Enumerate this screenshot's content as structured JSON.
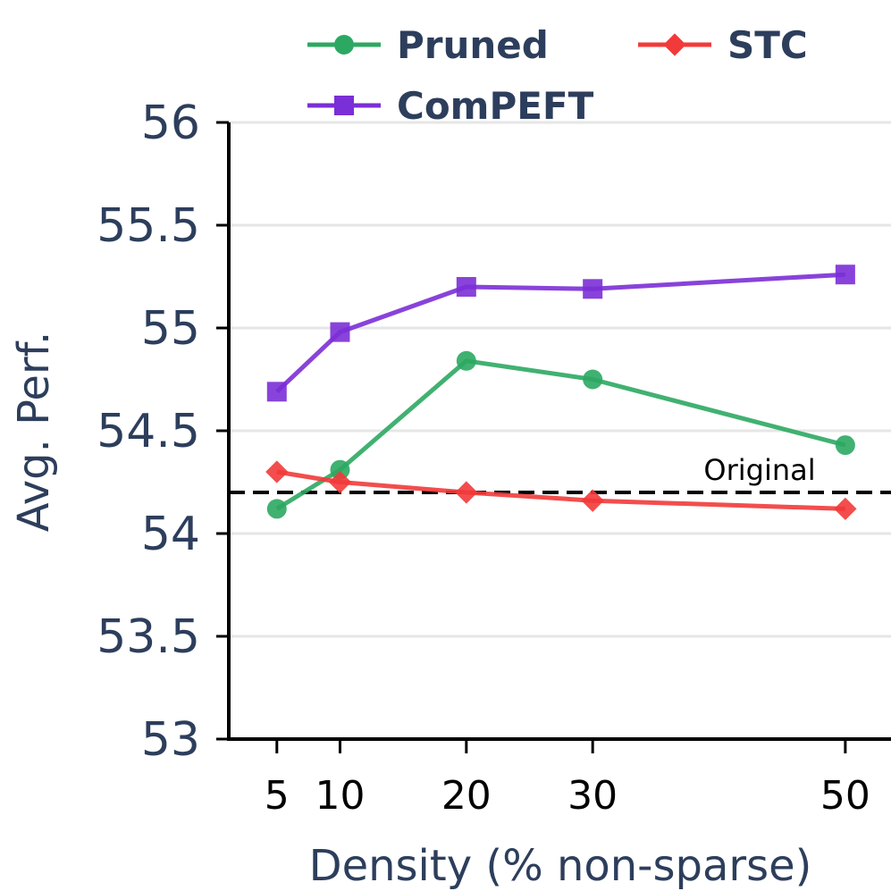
{
  "chart_data": {
    "type": "line",
    "title": "",
    "xlabel": "Density (% non-sparse)",
    "ylabel": "Avg. Perf.",
    "x": [
      5,
      10,
      20,
      30,
      50
    ],
    "x_tick_labels": [
      "5",
      "10",
      "20",
      "30",
      "50"
    ],
    "ylim": [
      53,
      56
    ],
    "y_ticks": [
      53,
      53.5,
      54,
      54.5,
      55,
      55.5,
      56
    ],
    "y_tick_labels": [
      "53",
      "53.5",
      "54",
      "54.5",
      "55",
      "55.5",
      "56"
    ],
    "grid": "horizontal",
    "legend_position": "top",
    "series": [
      {
        "name": "Pruned",
        "color": "#2ca862",
        "marker": "circle",
        "values": [
          54.12,
          54.31,
          54.84,
          54.75,
          54.43
        ]
      },
      {
        "name": "STC",
        "color": "#f23a3a",
        "marker": "diamond",
        "values": [
          54.3,
          54.25,
          54.2,
          54.16,
          54.12
        ]
      },
      {
        "name": "ComPEFT",
        "color": "#7b2fd6",
        "marker": "square",
        "values": [
          54.69,
          54.98,
          55.2,
          55.19,
          55.26
        ]
      }
    ],
    "reference_line": {
      "label": "Original",
      "value": 54.2,
      "color": "#000000"
    }
  }
}
